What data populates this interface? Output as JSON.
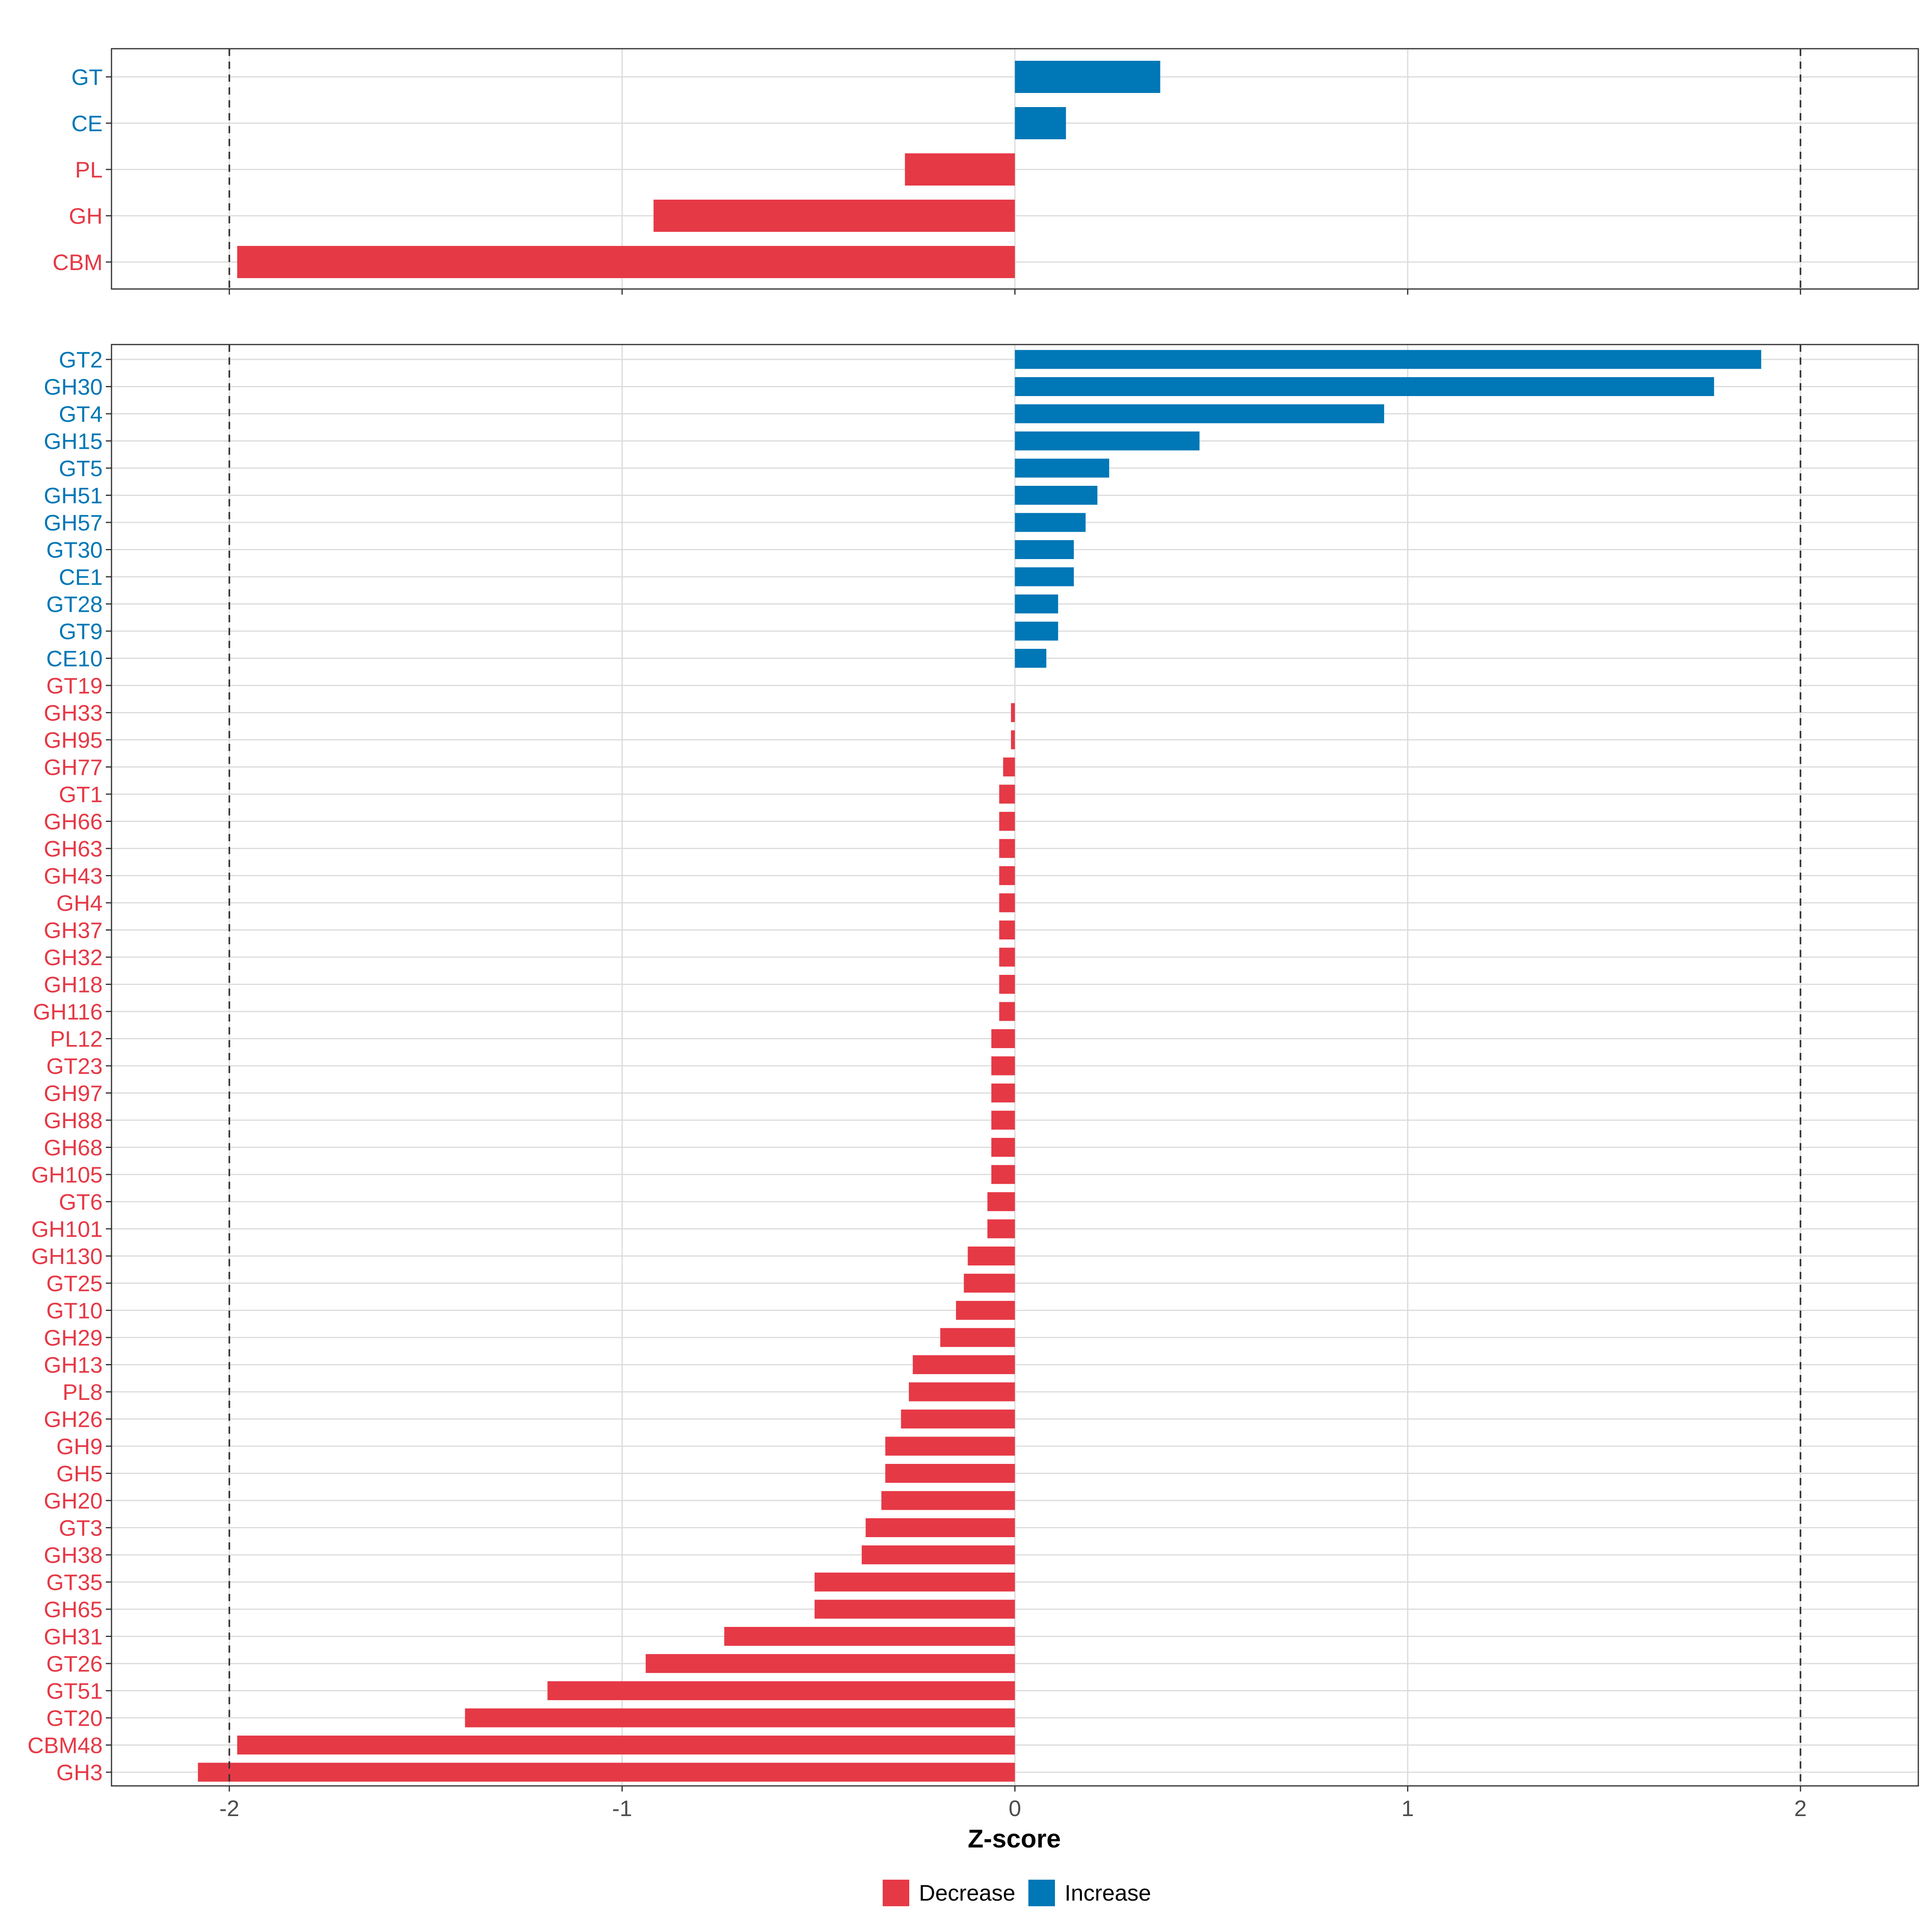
{
  "colors": {
    "decrease": "#E63946",
    "increase": "#0077B6"
  },
  "chart_data": [
    {
      "type": "bar",
      "orientation": "horizontal",
      "panel": "family",
      "categories": [
        "GT",
        "CE",
        "PL",
        "GH",
        "CBM"
      ],
      "values": [
        0.37,
        0.13,
        -0.28,
        -0.92,
        -1.98
      ],
      "xlim": [
        -2.3,
        2.3
      ],
      "grid": true,
      "reference_lines": [
        -2,
        2
      ]
    },
    {
      "type": "bar",
      "orientation": "horizontal",
      "panel": "subfamily",
      "categories": [
        "GT2",
        "GH30",
        "GT4",
        "GH15",
        "GT5",
        "GH51",
        "GH57",
        "GT30",
        "CE1",
        "GT28",
        "GT9",
        "CE10",
        "GT19",
        "GH33",
        "GH95",
        "GH77",
        "GT1",
        "GH66",
        "GH63",
        "GH43",
        "GH4",
        "GH37",
        "GH32",
        "GH18",
        "GH116",
        "PL12",
        "GT23",
        "GH97",
        "GH88",
        "GH68",
        "GH105",
        "GT6",
        "GH101",
        "GH130",
        "GT25",
        "GT10",
        "GH29",
        "GH13",
        "PL8",
        "GH26",
        "GH9",
        "GH5",
        "GH20",
        "GT3",
        "GH38",
        "GT35",
        "GH65",
        "GH31",
        "GT26",
        "GT51",
        "GT20",
        "CBM48",
        "GH3"
      ],
      "values": [
        1.9,
        1.78,
        0.94,
        0.47,
        0.24,
        0.21,
        0.18,
        0.15,
        0.15,
        0.11,
        0.11,
        0.08,
        0.0,
        -0.01,
        -0.01,
        -0.03,
        -0.04,
        -0.04,
        -0.04,
        -0.04,
        -0.04,
        -0.04,
        -0.04,
        -0.04,
        -0.04,
        -0.06,
        -0.06,
        -0.06,
        -0.06,
        -0.06,
        -0.06,
        -0.07,
        -0.07,
        -0.12,
        -0.13,
        -0.15,
        -0.19,
        -0.26,
        -0.27,
        -0.29,
        -0.33,
        -0.33,
        -0.34,
        -0.38,
        -0.39,
        -0.51,
        -0.51,
        -0.74,
        -0.94,
        -1.19,
        -1.4,
        -1.98,
        -2.08
      ],
      "xlim": [
        -2.3,
        2.3
      ],
      "grid": true,
      "reference_lines": [
        -2,
        2
      ]
    }
  ],
  "axis": {
    "xlabel": "Z-score",
    "ticks": [
      -2,
      -1,
      0,
      1,
      2
    ],
    "tick_labels": [
      "-2",
      "-1",
      "0",
      "1",
      "2"
    ]
  },
  "legend": {
    "position": "bottom",
    "items": [
      {
        "label": "Decrease",
        "color": "#E63946"
      },
      {
        "label": "Increase",
        "color": "#0077B6"
      }
    ]
  }
}
